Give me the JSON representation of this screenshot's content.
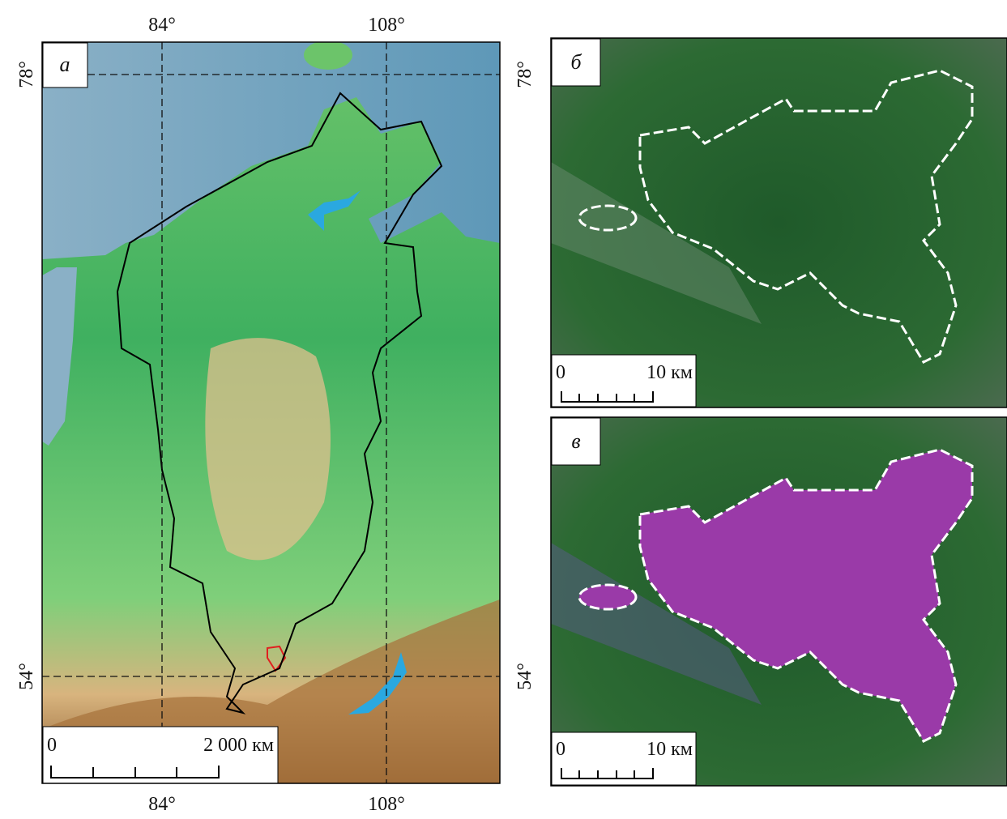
{
  "map_a": {
    "label": "а",
    "lon_labels": [
      "84°",
      "108°"
    ],
    "lat_labels": [
      "78°",
      "54°"
    ],
    "scale": {
      "start": "0",
      "end": "2 000 км"
    }
  },
  "panel_b": {
    "label": "б",
    "scale": {
      "start": "0",
      "end": "10 км"
    }
  },
  "panel_c": {
    "label": "в",
    "scale": {
      "start": "0",
      "end": "10 км"
    }
  }
}
